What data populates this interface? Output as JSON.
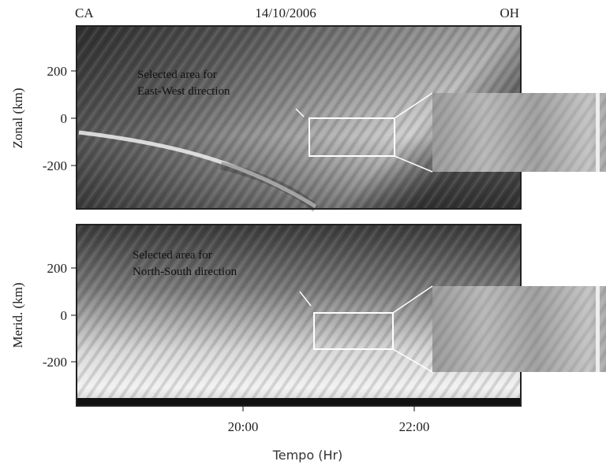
{
  "header": {
    "left": "CA",
    "center": "14/10/2006",
    "right": "OH"
  },
  "panels": [
    {
      "y_label": "Zonal (km)",
      "y_ticks": [
        "200",
        "0",
        "-200"
      ],
      "annotation": [
        "Selected area for",
        "East-West direction"
      ]
    },
    {
      "y_label": "Merid. (km)",
      "y_ticks": [
        "200",
        "0",
        "-200"
      ],
      "annotation": [
        "Selected area for",
        "North-South direction"
      ]
    }
  ],
  "x_ticks": [
    "20:00",
    "22:00"
  ],
  "x_label": "Tempo (Hr)"
}
